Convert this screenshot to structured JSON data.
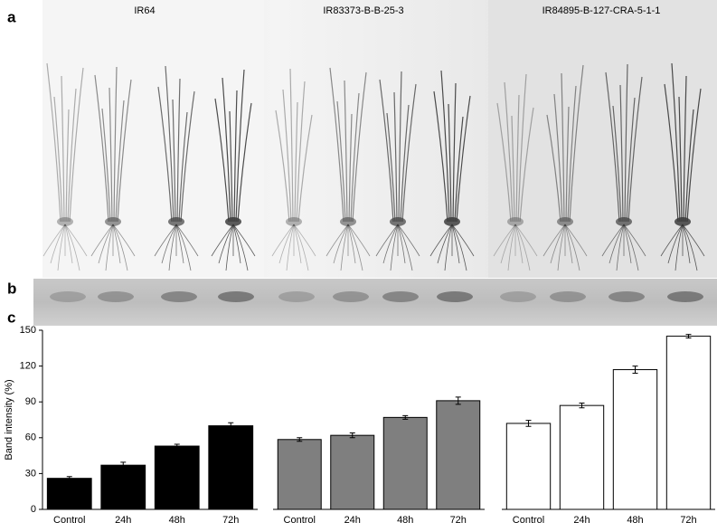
{
  "panel_labels": [
    "a",
    "b",
    "c"
  ],
  "chart_data": {
    "type": "bar",
    "y_label": "Band intensity (%)",
    "categories": [
      "Control",
      "24h",
      "48h",
      "72h"
    ],
    "series": [
      {
        "name": "IR64",
        "color": "#000000",
        "values": [
          26,
          37,
          53,
          70
        ],
        "errors": [
          1.5,
          2.5,
          1.5,
          2.5
        ]
      },
      {
        "name": "IR83373-B-B-25-3",
        "color": "#7f7f7f",
        "values": [
          58.5,
          62,
          77,
          91
        ],
        "errors": [
          1.5,
          2,
          1.5,
          3
        ]
      },
      {
        "name": "IR84895-B-127-CRA-5-1-1",
        "color": "#ffffff",
        "values": [
          72,
          87,
          117,
          145
        ],
        "errors": [
          2.5,
          2,
          3,
          1.5
        ]
      }
    ],
    "ylim": [
      0,
      150
    ],
    "yticks": [
      0,
      30,
      60,
      90,
      120,
      150
    ],
    "grid": false
  }
}
